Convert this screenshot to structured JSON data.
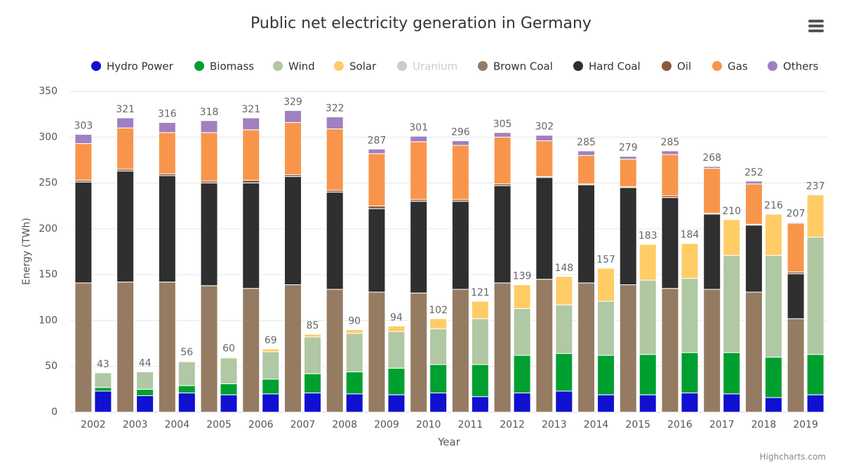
{
  "chart_data": {
    "type": "stacked-grouped-bar",
    "title": "Public net electricity generation in Germany",
    "x_label": "Year",
    "y_label": "Energy (TWh)",
    "credits": "Highcharts.com",
    "categories": [
      "2002",
      "2003",
      "2004",
      "2005",
      "2006",
      "2007",
      "2008",
      "2009",
      "2010",
      "2011",
      "2012",
      "2013",
      "2014",
      "2015",
      "2016",
      "2017",
      "2018",
      "2019"
    ],
    "ylim": [
      0,
      350
    ],
    "yticks": [
      0,
      50,
      100,
      150,
      200,
      250,
      300,
      350
    ],
    "grid": true,
    "series": [
      {
        "name": "Hydro Power",
        "color": "#1010d0",
        "stack": 1,
        "values": [
          23,
          18,
          21,
          19,
          20,
          21,
          20,
          19,
          21,
          17,
          21,
          23,
          19,
          19,
          21,
          20,
          16,
          19
        ]
      },
      {
        "name": "Biomass",
        "color": "#00a030",
        "stack": 1,
        "values": [
          4,
          7,
          8,
          12,
          16,
          21,
          24,
          29,
          31,
          35,
          41,
          41,
          43,
          44,
          44,
          45,
          44,
          44
        ]
      },
      {
        "name": "Wind",
        "color": "#b0c8a4",
        "stack": 1,
        "values": [
          16,
          19,
          26,
          28,
          30,
          40,
          42,
          40,
          39,
          50,
          51,
          53,
          59,
          81,
          81,
          106,
          111,
          128
        ]
      },
      {
        "name": "Solar",
        "color": "#ffcc66",
        "stack": 1,
        "values": [
          0,
          0,
          1,
          1,
          3,
          3,
          4,
          6,
          11,
          19,
          26,
          31,
          36,
          39,
          38,
          39,
          45,
          46
        ]
      },
      {
        "name": "Uranium",
        "color": "#cccccc",
        "stack": 1,
        "visible": false,
        "values": [
          null,
          null,
          null,
          null,
          null,
          null,
          null,
          null,
          null,
          null,
          null,
          null,
          null,
          null,
          null,
          null,
          null,
          null
        ]
      },
      {
        "name": "Brown Coal",
        "color": "#957b62",
        "stack": 0,
        "values": [
          141,
          142,
          142,
          138,
          135,
          139,
          134,
          131,
          130,
          134,
          141,
          145,
          141,
          139,
          135,
          134,
          131,
          102
        ]
      },
      {
        "name": "Hard Coal",
        "color": "#2f2f2f",
        "stack": 0,
        "values": [
          110,
          121,
          116,
          112,
          115,
          118,
          106,
          91,
          100,
          96,
          106,
          111,
          107,
          106,
          99,
          82,
          73,
          49
        ]
      },
      {
        "name": "Oil",
        "color": "#8a5a3c",
        "stack": 0,
        "values": [
          2,
          2,
          2,
          2,
          3,
          2,
          2,
          3,
          2,
          2,
          2,
          1,
          1,
          1,
          2,
          1,
          1,
          2
        ]
      },
      {
        "name": "Gas",
        "color": "#f8954a",
        "stack": 0,
        "values": [
          40,
          45,
          45,
          53,
          55,
          57,
          67,
          57,
          63,
          59,
          51,
          39,
          31,
          30,
          45,
          49,
          44,
          53
        ]
      },
      {
        "name": "Others",
        "color": "#a080c0",
        "stack": 0,
        "values": [
          10,
          11,
          11,
          13,
          13,
          13,
          13,
          5,
          6,
          5,
          5,
          6,
          5,
          3,
          4,
          2,
          3,
          1
        ]
      }
    ],
    "stack_totals": [
      [
        303,
        321,
        316,
        318,
        321,
        329,
        322,
        287,
        301,
        296,
        305,
        302,
        285,
        279,
        285,
        268,
        252,
        207
      ],
      [
        43,
        44,
        56,
        60,
        69,
        85,
        90,
        94,
        102,
        121,
        139,
        148,
        157,
        183,
        184,
        210,
        216,
        237
      ]
    ]
  }
}
